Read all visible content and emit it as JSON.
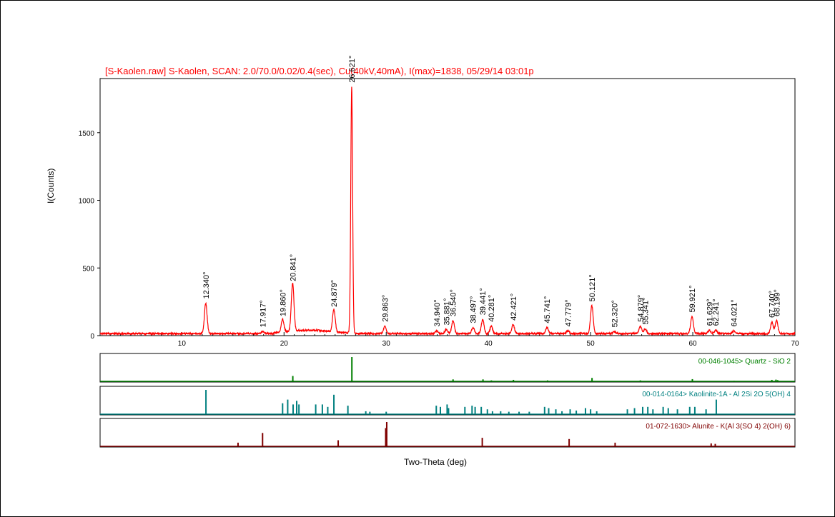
{
  "chart_data": {
    "type": "line",
    "title": "[S-Kaolen.raw] S-Kaolen, SCAN: 2.0/70.0/0.02/0.4(sec), Cu(40kV,40mA), I(max)=1838, 05/29/14 03:01p",
    "xlabel": "Two-Theta (deg)",
    "ylabel": "I(Counts)",
    "xlim": [
      2,
      70
    ],
    "ylim": [
      0,
      1900
    ],
    "x_ticks": [
      10,
      20,
      30,
      40,
      50,
      60,
      70
    ],
    "y_ticks": [
      0,
      500,
      1000,
      1500
    ],
    "series_color": "#ff0000",
    "baseline": 15,
    "peaks": [
      {
        "x": 12.34,
        "y": 240,
        "label": "12.340°"
      },
      {
        "x": 17.917,
        "y": 30,
        "label": "17.917°"
      },
      {
        "x": 19.86,
        "y": 110,
        "label": "19.860°"
      },
      {
        "x": 20.841,
        "y": 370,
        "label": "20.841°"
      },
      {
        "x": 24.879,
        "y": 180,
        "label": "24.879°"
      },
      {
        "x": 26.621,
        "y": 1838,
        "label": "26.621°"
      },
      {
        "x": 29.863,
        "y": 70,
        "label": "29.863°"
      },
      {
        "x": 34.94,
        "y": 35,
        "label": "34.940°"
      },
      {
        "x": 35.881,
        "y": 45,
        "label": "35.881°"
      },
      {
        "x": 36.54,
        "y": 110,
        "label": "36.540°"
      },
      {
        "x": 38.497,
        "y": 60,
        "label": "38.497°"
      },
      {
        "x": 39.441,
        "y": 120,
        "label": "39.441°"
      },
      {
        "x": 40.281,
        "y": 70,
        "label": "40.281°"
      },
      {
        "x": 42.421,
        "y": 80,
        "label": "42.421°"
      },
      {
        "x": 45.741,
        "y": 60,
        "label": "45.741°"
      },
      {
        "x": 47.779,
        "y": 35,
        "label": "47.779°"
      },
      {
        "x": 50.121,
        "y": 220,
        "label": "50.121°"
      },
      {
        "x": 52.32,
        "y": 30,
        "label": "52.320°"
      },
      {
        "x": 54.879,
        "y": 70,
        "label": "54.879°"
      },
      {
        "x": 55.341,
        "y": 50,
        "label": "55.341°"
      },
      {
        "x": 59.921,
        "y": 140,
        "label": "59.921°"
      },
      {
        "x": 61.629,
        "y": 40,
        "label": "61.629°"
      },
      {
        "x": 62.241,
        "y": 40,
        "label": "62.241°"
      },
      {
        "x": 64.021,
        "y": 35,
        "label": "64.021°"
      },
      {
        "x": 67.74,
        "y": 100,
        "label": "67.740°"
      },
      {
        "x": 68.199,
        "y": 110,
        "label": "68.199°"
      }
    ],
    "reference_patterns": [
      {
        "name": "00-046-1045> Quartz - SiO 2",
        "color": "#008000",
        "lines": [
          {
            "x": 20.86,
            "i": 0.22
          },
          {
            "x": 26.64,
            "i": 1.0
          },
          {
            "x": 36.54,
            "i": 0.08
          },
          {
            "x": 39.47,
            "i": 0.08
          },
          {
            "x": 40.29,
            "i": 0.04
          },
          {
            "x": 42.45,
            "i": 0.06
          },
          {
            "x": 45.79,
            "i": 0.04
          },
          {
            "x": 50.14,
            "i": 0.14
          },
          {
            "x": 54.87,
            "i": 0.04
          },
          {
            "x": 59.96,
            "i": 0.09
          },
          {
            "x": 64.04,
            "i": 0.02
          },
          {
            "x": 67.74,
            "i": 0.06
          },
          {
            "x": 68.14,
            "i": 0.07
          },
          {
            "x": 68.31,
            "i": 0.05
          }
        ]
      },
      {
        "name": "00-014-0164> Kaolinite-1A - Al 2Si 2O 5(OH) 4",
        "color": "#008080",
        "lines": [
          {
            "x": 12.36,
            "i": 1.0
          },
          {
            "x": 19.86,
            "i": 0.45
          },
          {
            "x": 20.36,
            "i": 0.6
          },
          {
            "x": 20.89,
            "i": 0.4
          },
          {
            "x": 21.24,
            "i": 0.55
          },
          {
            "x": 21.46,
            "i": 0.4
          },
          {
            "x": 23.1,
            "i": 0.4
          },
          {
            "x": 23.75,
            "i": 0.4
          },
          {
            "x": 24.28,
            "i": 0.3
          },
          {
            "x": 24.88,
            "i": 0.8
          },
          {
            "x": 26.25,
            "i": 0.35
          },
          {
            "x": 28.0,
            "i": 0.12
          },
          {
            "x": 28.4,
            "i": 0.1
          },
          {
            "x": 30.0,
            "i": 0.1
          },
          {
            "x": 34.9,
            "i": 0.35
          },
          {
            "x": 35.3,
            "i": 0.3
          },
          {
            "x": 35.96,
            "i": 0.4
          },
          {
            "x": 36.1,
            "i": 0.25
          },
          {
            "x": 37.7,
            "i": 0.3
          },
          {
            "x": 38.4,
            "i": 0.35
          },
          {
            "x": 38.7,
            "i": 0.3
          },
          {
            "x": 39.3,
            "i": 0.3
          },
          {
            "x": 39.9,
            "i": 0.2
          },
          {
            "x": 40.4,
            "i": 0.12
          },
          {
            "x": 41.2,
            "i": 0.12
          },
          {
            "x": 42.0,
            "i": 0.1
          },
          {
            "x": 43.0,
            "i": 0.1
          },
          {
            "x": 44.0,
            "i": 0.1
          },
          {
            "x": 45.5,
            "i": 0.3
          },
          {
            "x": 45.9,
            "i": 0.25
          },
          {
            "x": 46.6,
            "i": 0.2
          },
          {
            "x": 47.2,
            "i": 0.12
          },
          {
            "x": 48.0,
            "i": 0.2
          },
          {
            "x": 48.6,
            "i": 0.15
          },
          {
            "x": 49.5,
            "i": 0.25
          },
          {
            "x": 50.0,
            "i": 0.2
          },
          {
            "x": 50.6,
            "i": 0.12
          },
          {
            "x": 53.6,
            "i": 0.2
          },
          {
            "x": 54.3,
            "i": 0.25
          },
          {
            "x": 55.1,
            "i": 0.3
          },
          {
            "x": 55.6,
            "i": 0.3
          },
          {
            "x": 56.1,
            "i": 0.2
          },
          {
            "x": 57.1,
            "i": 0.3
          },
          {
            "x": 57.6,
            "i": 0.25
          },
          {
            "x": 58.5,
            "i": 0.2
          },
          {
            "x": 59.7,
            "i": 0.3
          },
          {
            "x": 60.2,
            "i": 0.3
          },
          {
            "x": 61.3,
            "i": 0.2
          },
          {
            "x": 62.3,
            "i": 0.6
          }
        ]
      },
      {
        "name": "01-072-1630> Alunite - K(Al 3(SO 4) 2(OH) 6)",
        "color": "#800000",
        "lines": [
          {
            "x": 15.5,
            "i": 0.15
          },
          {
            "x": 17.9,
            "i": 0.55
          },
          {
            "x": 25.3,
            "i": 0.25
          },
          {
            "x": 29.95,
            "i": 0.75
          },
          {
            "x": 30.05,
            "i": 1.0
          },
          {
            "x": 39.4,
            "i": 0.35
          },
          {
            "x": 47.9,
            "i": 0.3
          },
          {
            "x": 52.4,
            "i": 0.15
          },
          {
            "x": 61.8,
            "i": 0.12
          },
          {
            "x": 62.2,
            "i": 0.1
          }
        ]
      }
    ]
  }
}
